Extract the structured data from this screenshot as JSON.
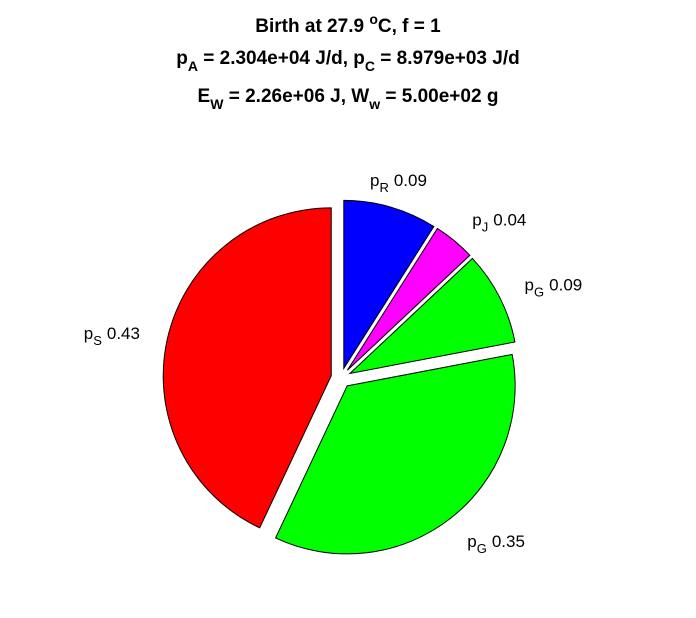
{
  "chart_data": {
    "type": "pie",
    "title_lines": [
      [
        {
          "text": "Birth at 27.9 "
        },
        {
          "text": "o",
          "shift": "sup"
        },
        {
          "text": "C, f = 1"
        }
      ],
      [
        {
          "text": "p"
        },
        {
          "text": "A",
          "shift": "sub"
        },
        {
          "text": " = 2.304e+04 J/d, p"
        },
        {
          "text": "C",
          "shift": "sub"
        },
        {
          "text": " = 8.979e+03 J/d"
        }
      ],
      [
        {
          "text": "E"
        },
        {
          "text": "W",
          "shift": "sub"
        },
        {
          "text": " = 2.26e+06 J, W"
        },
        {
          "text": "w",
          "shift": "sub"
        },
        {
          "text": " = 5.00e+02 g"
        }
      ]
    ],
    "slices": [
      {
        "name": "p",
        "subscript": "R",
        "value": 0.09,
        "color": "#0000ff"
      },
      {
        "name": "p",
        "subscript": "J",
        "value": 0.04,
        "color": "#ff00ff"
      },
      {
        "name": "p",
        "subscript": "G",
        "value": 0.09,
        "color": "#00ff00"
      },
      {
        "name": "p",
        "subscript": "G",
        "value": 0.35,
        "color": "#00ff00"
      },
      {
        "name": "p",
        "subscript": "S",
        "value": 0.43,
        "color": "#ff0000"
      }
    ]
  }
}
